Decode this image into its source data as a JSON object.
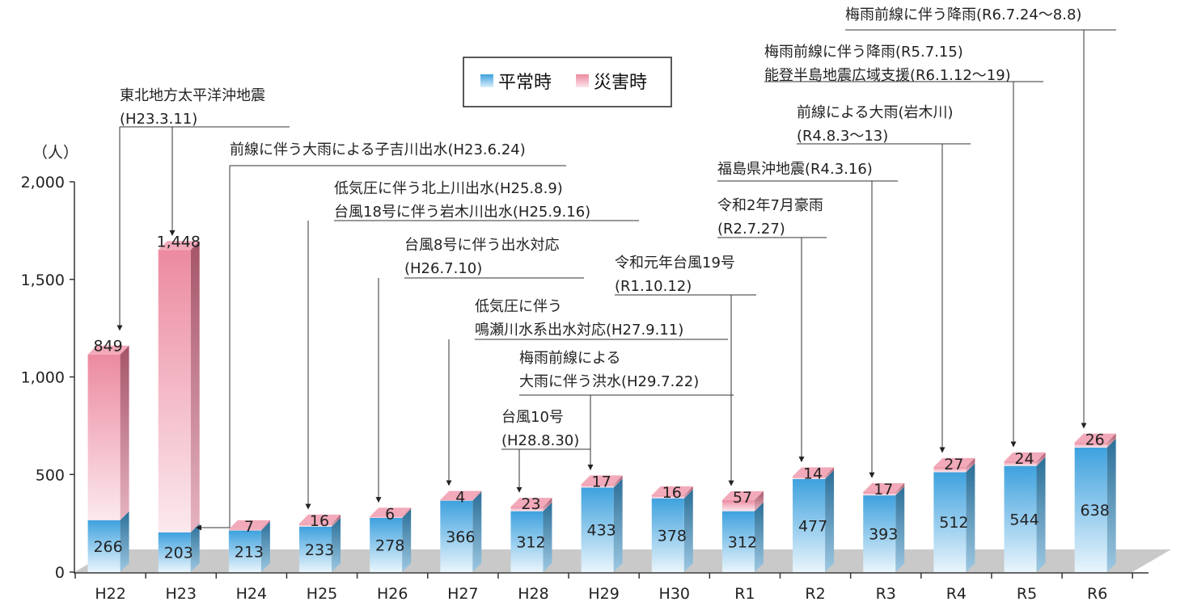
{
  "chart_data": {
    "type": "bar",
    "stacked": true,
    "unit_label": "（人）",
    "y_ticks": [
      "0",
      "500",
      "1,000",
      "1,500",
      "2,000"
    ],
    "ylim": [
      0,
      2000
    ],
    "categories": [
      "H22",
      "H23",
      "H24",
      "H25",
      "H26",
      "H27",
      "H28",
      "H29",
      "H30",
      "R1",
      "R2",
      "R3",
      "R4",
      "R5",
      "R6"
    ],
    "series": [
      {
        "name": "平常時",
        "color": "#4aa8e0",
        "values": [
          266,
          203,
          213,
          233,
          278,
          366,
          312,
          433,
          378,
          312,
          477,
          393,
          512,
          544,
          638
        ]
      },
      {
        "name": "災害時",
        "color": "#ec8aa0",
        "values": [
          849,
          1448,
          7,
          16,
          6,
          4,
          23,
          17,
          16,
          57,
          14,
          17,
          27,
          24,
          26
        ]
      }
    ],
    "annotations": [
      {
        "lines": [
          "東北地方太平洋沖地震",
          "(H23.3.11)"
        ],
        "targets": [
          "H22",
          "H23"
        ]
      },
      {
        "lines": [
          "前線に伴う大雨による子吉川出水(H23.6.24)"
        ],
        "targets": [
          "H23"
        ]
      },
      {
        "lines": [
          "低気圧に伴う北上川出水(H25.8.9)",
          "台風18号に伴う岩木川出水(H25.9.16)"
        ],
        "targets": [
          "H25"
        ]
      },
      {
        "lines": [
          "台風8号に伴う出水対応",
          "(H26.7.10)"
        ],
        "targets": [
          "H26"
        ]
      },
      {
        "lines": [
          "低気圧に伴う",
          "鳴瀬川水系出水対応(H27.9.11)"
        ],
        "targets": [
          "H27"
        ]
      },
      {
        "lines": [
          "台風10号",
          "(H28.8.30)"
        ],
        "targets": [
          "H28"
        ]
      },
      {
        "lines": [
          "梅雨前線による",
          "大雨に伴う洪水(H29.7.22)"
        ],
        "targets": [
          "H29"
        ]
      },
      {
        "lines": [
          "令和元年台風19号",
          "(R1.10.12)"
        ],
        "targets": [
          "R1"
        ]
      },
      {
        "lines": [
          "令和2年7月豪雨",
          "(R2.7.27)"
        ],
        "targets": [
          "R2"
        ]
      },
      {
        "lines": [
          "福島県沖地震(R4.3.16)"
        ],
        "targets": [
          "R3"
        ]
      },
      {
        "lines": [
          "前線による大雨(岩木川)",
          "(R4.8.3〜13)"
        ],
        "targets": [
          "R4"
        ]
      },
      {
        "lines": [
          "梅雨前線に伴う降雨(R5.7.15)",
          "能登半島地震広域支援(R6.1.12〜19)"
        ],
        "targets": [
          "R5"
        ]
      },
      {
        "lines": [
          "梅雨前線に伴う降雨(R6.7.24〜8.8)"
        ],
        "targets": [
          "R6"
        ]
      }
    ]
  }
}
